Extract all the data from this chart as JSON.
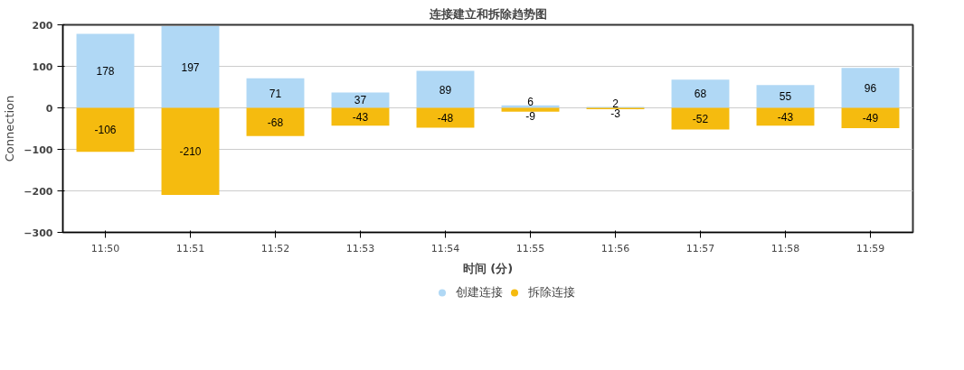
{
  "chart_data": {
    "type": "bar",
    "title": "连接建立和拆除趋势图",
    "xlabel": "时间 (分)",
    "ylabel": "Connection",
    "categories": [
      "11:50",
      "11:51",
      "11:52",
      "11:53",
      "11:54",
      "11:55",
      "11:56",
      "11:57",
      "11:58",
      "11:59"
    ],
    "series": [
      {
        "name": "创建连接",
        "color": "#b0d8f5",
        "values": [
          178,
          197,
          71,
          37,
          89,
          6,
          2,
          68,
          55,
          96
        ]
      },
      {
        "name": "拆除连接",
        "color": "#f5bb0f",
        "values": [
          -106,
          -210,
          -68,
          -43,
          -48,
          -9,
          -3,
          -52,
          -43,
          -49
        ]
      }
    ],
    "stacked": true,
    "data_labels": true,
    "ylim": [
      -300,
      200
    ],
    "yticks": [
      -300,
      -200,
      -100,
      0,
      100,
      200
    ],
    "grid": "y",
    "legend": "bottom"
  }
}
